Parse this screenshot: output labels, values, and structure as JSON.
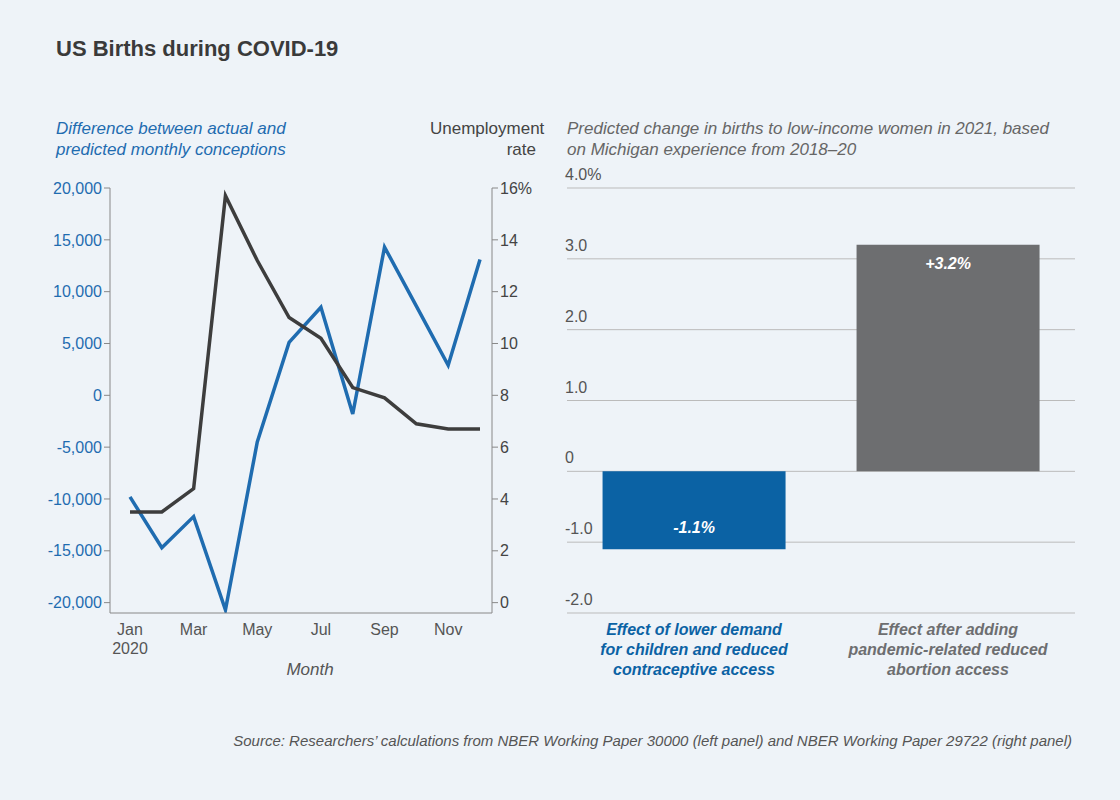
{
  "title": "US Births during COVID-19",
  "source": "Source: Researchers’ calculations from NBER Working Paper 30000 (left panel) and NBER Working Paper 29722 (right panel)",
  "chart_data": [
    {
      "type": "line",
      "xlabel": "Month",
      "categories": [
        "Jan 2020",
        null,
        "Mar",
        null,
        "May",
        null,
        "Jul",
        null,
        "Sep",
        null,
        "Nov",
        null
      ],
      "series": [
        {
          "name": "Difference between actual and predicted monthly conceptions",
          "color": "#1f6cb0",
          "values": [
            -9800,
            -14700,
            -11700,
            -20700,
            -4500,
            5100,
            8500,
            -1800,
            14300,
            8600,
            2900,
            13100
          ]
        },
        {
          "name": "Unemployment rate",
          "color": "#3d3d3d",
          "axis": "y2",
          "values": [
            3.5,
            3.5,
            4.4,
            15.7,
            13.2,
            11.0,
            10.2,
            8.3,
            7.9,
            6.9,
            6.7,
            6.7
          ]
        }
      ],
      "ylim": [
        -21000,
        20000
      ],
      "yticks": [
        {
          "value": -20000,
          "label": "-20,000"
        },
        {
          "value": -15000,
          "label": "-15,000"
        },
        {
          "value": -10000,
          "label": "-10,000"
        },
        {
          "value": -5000,
          "label": "-5,000"
        },
        0,
        {
          "value": 5000,
          "label": "5,000"
        },
        {
          "value": 10000,
          "label": "10,000"
        },
        {
          "value": 15000,
          "label": "15,000"
        },
        {
          "value": 20000,
          "label": "20,000"
        }
      ],
      "y2lim": [
        -0.4,
        16
      ],
      "y2ticks": [
        0,
        2,
        4,
        6,
        8,
        10,
        12,
        14,
        {
          "value": 16,
          "label": "16%"
        }
      ],
      "grid": false
    },
    {
      "type": "bar",
      "title": "Predicted change in births to low-income women in 2021, based on Michigan experience from 2018–20",
      "categories": [
        "Effect of lower demand for children and reduced contraceptive access",
        "Effect after adding pandemic-related reduced abortion access"
      ],
      "values": [
        -1.1,
        3.2
      ],
      "value_labels": [
        "-1.1%",
        "+3.2%"
      ],
      "colors": [
        "#0b62a4",
        "#6d6e70"
      ],
      "ylim": [
        -2,
        4
      ],
      "yticks": [
        {
          "value": -2,
          "label": "-2.0"
        },
        {
          "value": -1,
          "label": "-1.0"
        },
        0,
        {
          "value": 1,
          "label": "1.0"
        },
        {
          "value": 2,
          "label": "2.0"
        },
        {
          "value": 3,
          "label": "3.0"
        },
        {
          "value": 4,
          "label": "4.0%"
        }
      ],
      "grid": true,
      "data_labels": true
    }
  ]
}
